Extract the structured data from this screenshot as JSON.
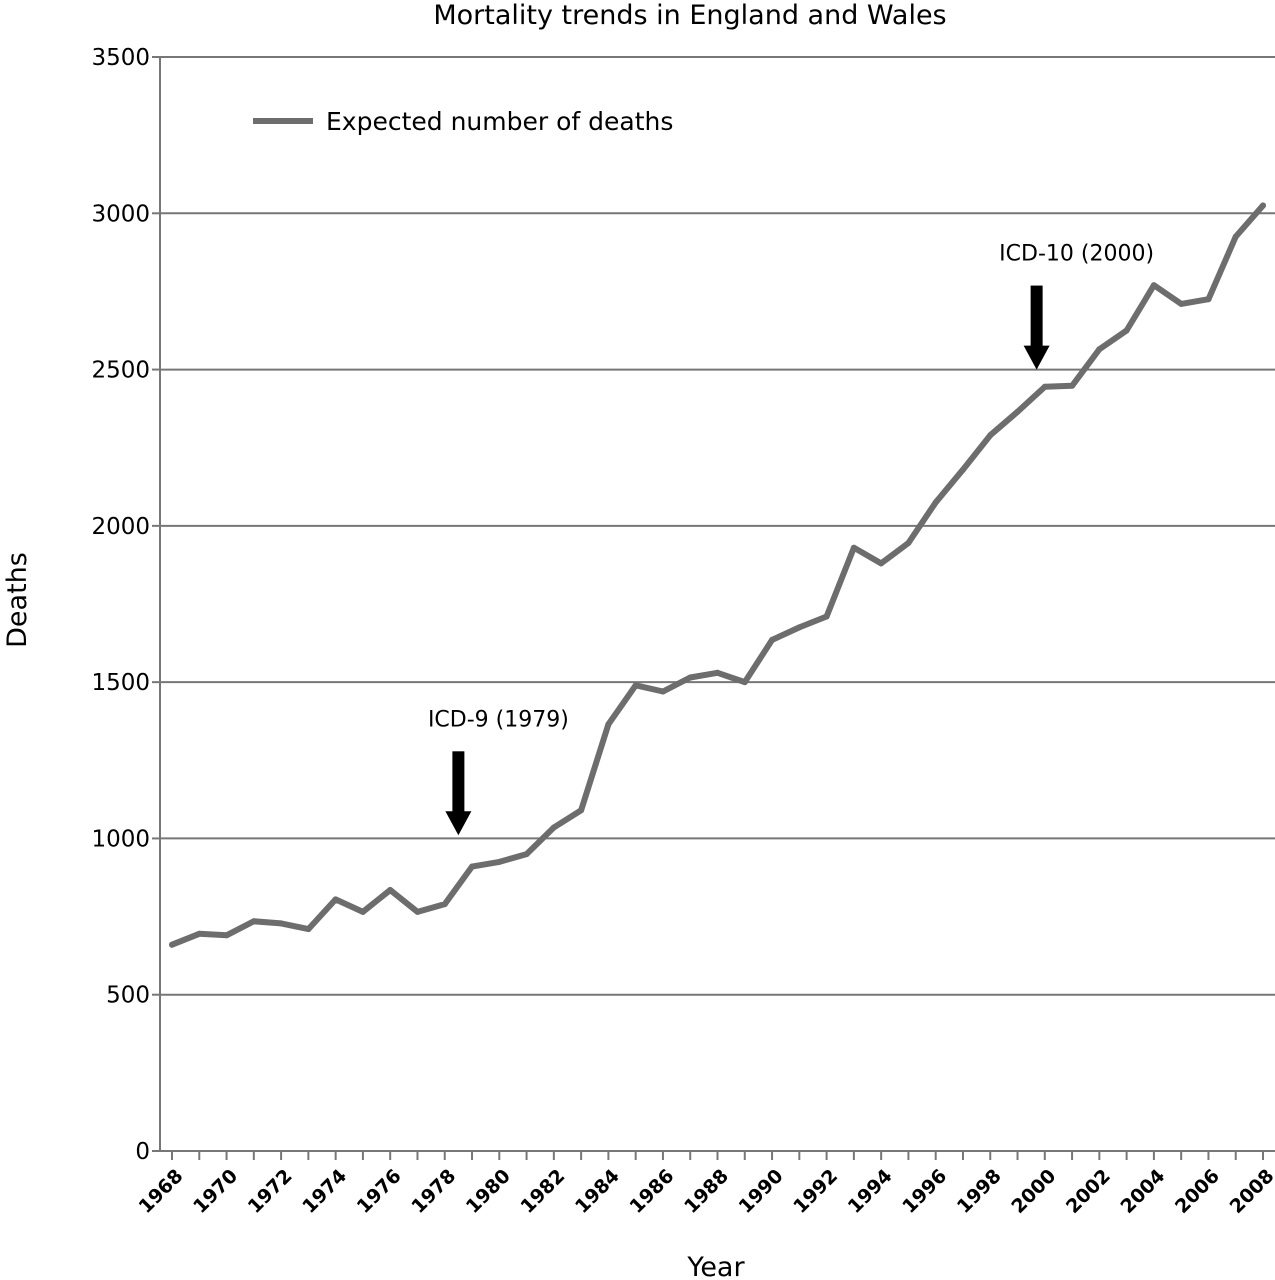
{
  "chart_data": {
    "type": "line",
    "title": "Mortality trends in England and Wales",
    "xlabel": "Year",
    "ylabel": "Deaths",
    "ylim": [
      0,
      3500
    ],
    "xlim": [
      1968,
      2008
    ],
    "yticks": [
      "0",
      "500",
      "1000",
      "1500",
      "2000",
      "2500",
      "3000",
      "3500"
    ],
    "xticks": [
      "1968",
      "1970",
      "1972",
      "1974",
      "1976",
      "1978",
      "1980",
      "1982",
      "1984",
      "1986",
      "1988",
      "1990",
      "1992",
      "1994",
      "1996",
      "1998",
      "2000",
      "2002",
      "2004",
      "2006",
      "2008"
    ],
    "grid": "horizontal",
    "legend_position": "top-left",
    "series": [
      {
        "name": "Expected number of deaths",
        "color": "#6d6d6d",
        "x": [
          1968,
          1969,
          1970,
          1971,
          1972,
          1973,
          1974,
          1975,
          1976,
          1977,
          1978,
          1979,
          1980,
          1981,
          1982,
          1983,
          1984,
          1985,
          1986,
          1987,
          1988,
          1989,
          1990,
          1991,
          1992,
          1993,
          1994,
          1995,
          1996,
          1997,
          1998,
          1999,
          2000,
          2001,
          2002,
          2003,
          2004,
          2005,
          2006,
          2007,
          2008
        ],
        "y": [
          660,
          695,
          690,
          735,
          728,
          710,
          805,
          765,
          835,
          765,
          790,
          910,
          925,
          950,
          1035,
          1090,
          1365,
          1490,
          1470,
          1515,
          1530,
          1500,
          1635,
          1675,
          1710,
          1930,
          1880,
          1945,
          2075,
          2180,
          2290,
          2365,
          2445,
          2448,
          2565,
          2625,
          2770,
          2710,
          2725,
          2925,
          3025
        ]
      }
    ],
    "annotations": [
      {
        "text": "ICD-9 (1979)",
        "x": 1978.5,
        "y": 1010
      },
      {
        "text": "ICD-10 (2000)",
        "x": 1999.7,
        "y": 2500
      }
    ]
  }
}
